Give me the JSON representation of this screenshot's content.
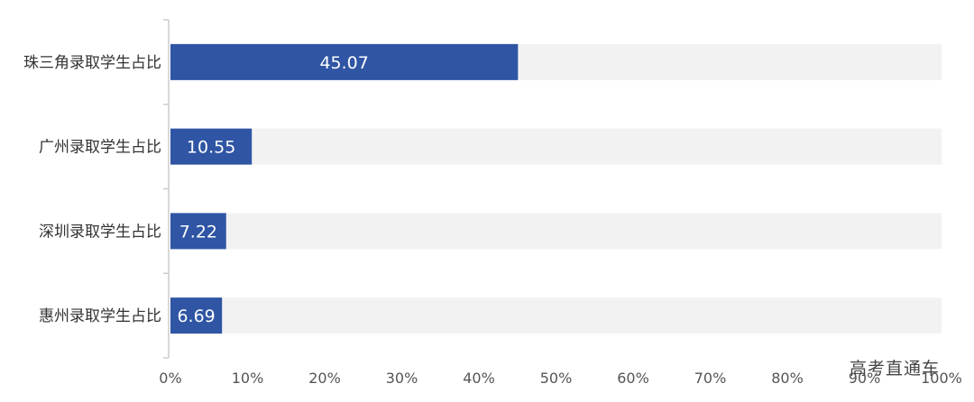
{
  "watermark": "高考直通车",
  "chart_data": {
    "type": "bar",
    "orientation": "horizontal",
    "categories": [
      "珠三角录取学生占比",
      "广州录取学生占比",
      "深圳录取学生占比",
      "惠州录取学生占比"
    ],
    "values": [
      45.07,
      10.55,
      7.22,
      6.69
    ],
    "data_labels": [
      "45.07",
      "10.55",
      "7.22",
      "6.69"
    ],
    "xlim": [
      0,
      100
    ],
    "x_ticks": [
      "0%",
      "10%",
      "20%",
      "30%",
      "40%",
      "50%",
      "60%",
      "70%",
      "80%",
      "90%",
      "100%"
    ],
    "grid": false,
    "legend": "none",
    "colors": {
      "bar": "#2f55a4",
      "track": "#f2f2f2",
      "axis": "#cccccc"
    }
  }
}
